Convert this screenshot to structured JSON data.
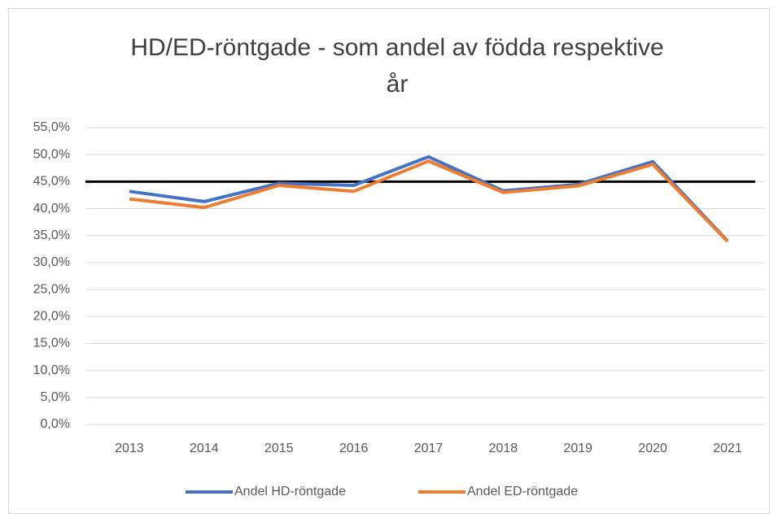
{
  "chart_data": {
    "type": "line",
    "title_lines": [
      "HD/ED-röntgade - som andel av födda respektive",
      "år"
    ],
    "categories": [
      "2013",
      "2014",
      "2015",
      "2016",
      "2017",
      "2018",
      "2019",
      "2020",
      "2021"
    ],
    "series": [
      {
        "name": "Andel HD-röntgade",
        "color": "#4472c4",
        "values": [
          43.2,
          41.3,
          44.7,
          44.3,
          49.6,
          43.3,
          44.5,
          48.7,
          34.0
        ]
      },
      {
        "name": "Andel ED-röntgade",
        "color": "#ed7d31",
        "values": [
          41.8,
          40.2,
          44.3,
          43.2,
          48.8,
          43.0,
          44.2,
          48.2,
          33.9
        ]
      }
    ],
    "reference_line": {
      "value": 45,
      "color": "#000000"
    },
    "ylim": [
      0,
      55
    ],
    "yticks": [
      {
        "value": 0,
        "label": "0,0%"
      },
      {
        "value": 5,
        "label": "5,0%"
      },
      {
        "value": 10,
        "label": "10,0%"
      },
      {
        "value": 15,
        "label": "15,0%"
      },
      {
        "value": 20,
        "label": "20,0%"
      },
      {
        "value": 25,
        "label": "25,0%"
      },
      {
        "value": 30,
        "label": "30,0%"
      },
      {
        "value": 35,
        "label": "35,0%"
      },
      {
        "value": 40,
        "label": "40,0%"
      },
      {
        "value": 45,
        "label": "45,0%"
      },
      {
        "value": 50,
        "label": "50,0%"
      },
      {
        "value": 55,
        "label": "55,0%"
      }
    ],
    "grid": true,
    "legend": "bottom"
  }
}
